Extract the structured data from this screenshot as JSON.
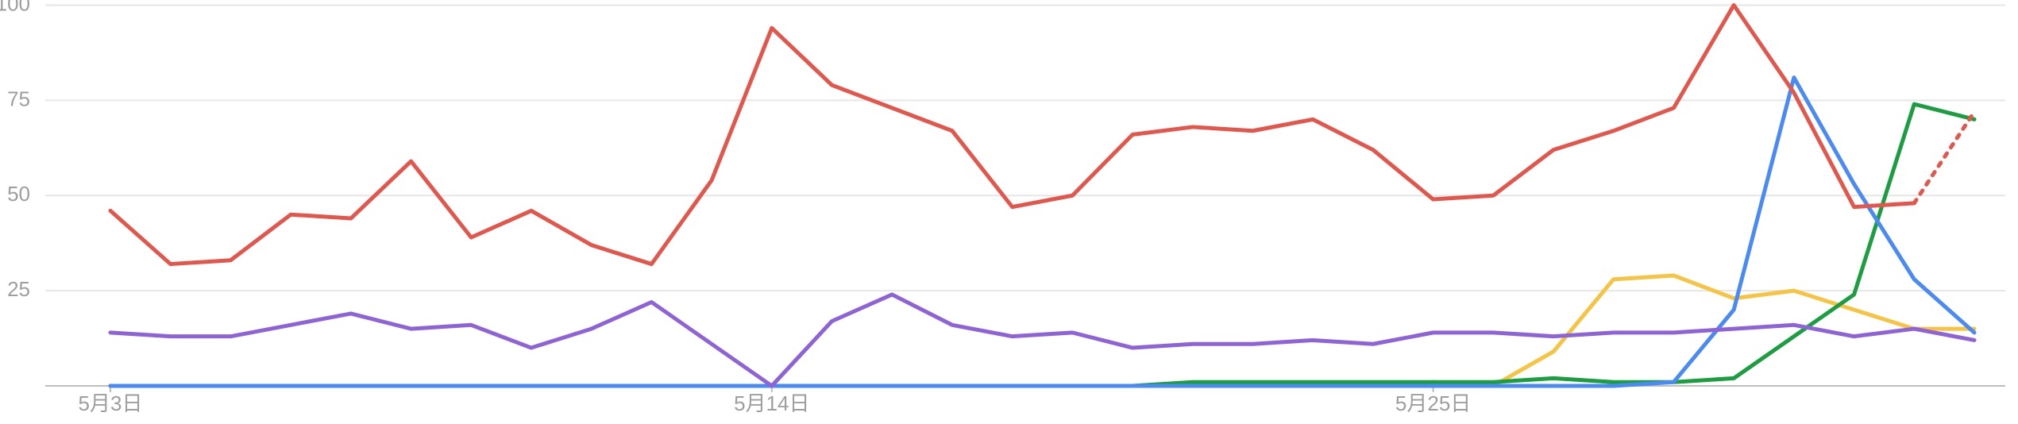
{
  "chart_data": {
    "type": "line",
    "categories": [
      "5月3日",
      null,
      null,
      null,
      null,
      null,
      null,
      null,
      null,
      null,
      null,
      "5月14日",
      null,
      null,
      null,
      null,
      null,
      null,
      null,
      null,
      null,
      null,
      "5月25日",
      null,
      null,
      null,
      null,
      null,
      null,
      null,
      null,
      null
    ],
    "ylim": [
      0,
      100
    ],
    "yticks": [
      25,
      50,
      75,
      100
    ],
    "grid": true,
    "series": [
      {
        "color": "#f6c343",
        "values": [
          0,
          0,
          0,
          0,
          0,
          0,
          0,
          0,
          0,
          0,
          0,
          0,
          0,
          0,
          0,
          0,
          0,
          0,
          0,
          0,
          0,
          0,
          1,
          0,
          9,
          28,
          29,
          23,
          25,
          20,
          15,
          15
        ]
      },
      {
        "color": "#1a9e3f",
        "values": [
          0,
          0,
          0,
          0,
          0,
          0,
          0,
          0,
          0,
          0,
          0,
          0,
          0,
          0,
          0,
          0,
          0,
          0,
          1,
          1,
          1,
          1,
          1,
          1,
          2,
          1,
          1,
          2,
          13,
          24,
          74,
          70
        ]
      },
      {
        "color": "#4a8af4",
        "values": [
          0,
          0,
          0,
          0,
          0,
          0,
          0,
          0,
          0,
          0,
          0,
          0,
          0,
          0,
          0,
          0,
          0,
          0,
          0,
          0,
          0,
          0,
          0,
          0,
          0,
          0,
          1,
          20,
          81,
          53,
          28,
          14
        ]
      },
      {
        "color": "#8e63d8",
        "values": [
          14,
          13,
          13,
          16,
          19,
          15,
          16,
          10,
          15,
          22,
          11,
          0,
          17,
          24,
          16,
          13,
          14,
          10,
          11,
          11,
          12,
          11,
          14,
          14,
          13,
          14,
          14,
          15,
          16,
          13,
          15,
          12
        ]
      },
      {
        "color": "#e2564b",
        "dotted_last_segment": true,
        "values": [
          46,
          32,
          33,
          45,
          44,
          59,
          39,
          46,
          37,
          32,
          54,
          94,
          79,
          73,
          67,
          47,
          50,
          66,
          68,
          67,
          70,
          62,
          49,
          50,
          62,
          67,
          73,
          100,
          77,
          47,
          48,
          72
        ]
      }
    ]
  }
}
